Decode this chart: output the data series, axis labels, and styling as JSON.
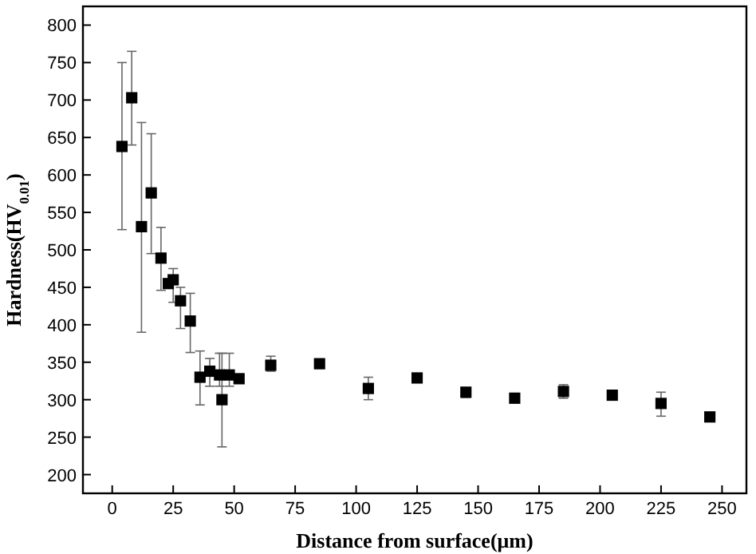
{
  "chart_data": {
    "type": "scatter",
    "xlabel": "Distance from surface(μm)",
    "ylabel": "Hardness(HV$_{0.01}$)",
    "x": [
      4,
      8,
      12,
      16,
      20,
      23,
      25,
      28,
      32,
      36,
      40,
      44,
      45,
      48,
      52,
      65,
      85,
      105,
      125,
      145,
      165,
      185,
      205,
      225,
      245
    ],
    "values": [
      638,
      703,
      531,
      576,
      489,
      455,
      460,
      432,
      405,
      330,
      338,
      333,
      300,
      333,
      328,
      346,
      348,
      315,
      329,
      310,
      302,
      311,
      306,
      295,
      277
    ],
    "errors": [
      [
        527,
        750
      ],
      [
        640,
        765
      ],
      [
        390,
        670
      ],
      [
        495,
        655
      ],
      [
        446,
        530
      ],
      null,
      [
        430,
        475
      ],
      [
        395,
        450
      ],
      [
        363,
        442
      ],
      [
        293,
        365
      ],
      [
        318,
        355
      ],
      [
        318,
        362
      ],
      [
        237,
        362
      ],
      [
        318,
        362
      ],
      null,
      [
        338,
        358
      ],
      null,
      [
        300,
        330
      ],
      null,
      [
        303,
        316
      ],
      null,
      [
        302,
        320
      ],
      null,
      [
        278,
        310
      ],
      null
    ],
    "color": "#000000",
    "marker": "square",
    "xlim": [
      -12,
      260
    ],
    "xticks": [
      0,
      25,
      50,
      75,
      100,
      125,
      150,
      175,
      200,
      225,
      250
    ],
    "ylim": [
      175,
      825
    ],
    "yticks": [
      200,
      250,
      300,
      350,
      400,
      450,
      500,
      550,
      600,
      650,
      700,
      750,
      800
    ]
  }
}
